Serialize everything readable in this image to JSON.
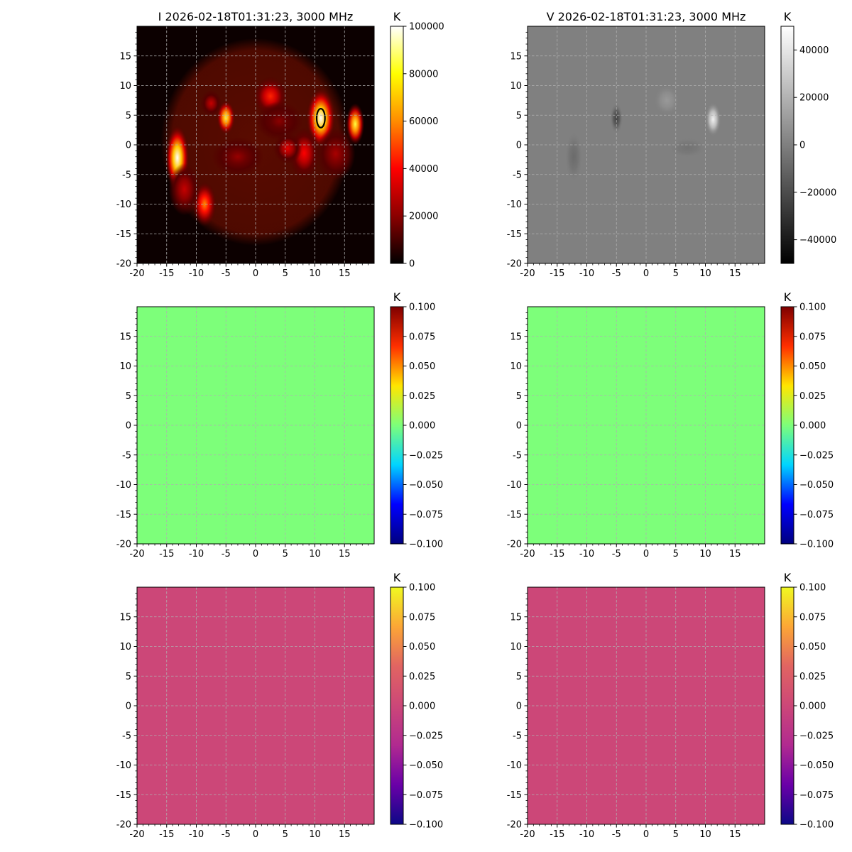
{
  "chart_data": [
    {
      "type": "heatmap",
      "title": "I 2026-02-18T01:31:23, 3000 MHz",
      "xlabel": "",
      "ylabel": "",
      "xlim": [
        -20,
        20
      ],
      "ylim": [
        -20,
        20
      ],
      "x_ticks": [
        "-20",
        "-15",
        "-10",
        "-5",
        "0",
        "5",
        "10",
        "15"
      ],
      "y_ticks": [
        "15",
        "10",
        "5",
        "0",
        "-5",
        "-10",
        "-15",
        "-20"
      ],
      "grid": true,
      "colormap": "hot",
      "colorbar": {
        "unit": "K",
        "range": [
          0,
          100000
        ],
        "ticks": [
          "100000",
          "80000",
          "60000",
          "40000",
          "20000",
          "0"
        ],
        "gradient": [
          "#000000",
          "#8b0000",
          "#ff0000",
          "#ff8c00",
          "#ffff00",
          "#ffffff"
        ]
      },
      "background_color": "#0c0000",
      "disk": {
        "center": [
          0,
          0.5
        ],
        "radius_x": 16,
        "radius_y": 17.5,
        "brightness_K": 12000,
        "color": "#5a0b00"
      },
      "sources": [
        {
          "x": 11,
          "y": 4.5,
          "sx": 1.1,
          "sy": 2.3,
          "peak_K": 100000
        },
        {
          "x": -13.2,
          "y": -2.2,
          "sx": 0.9,
          "sy": 2.5,
          "peak_K": 100000
        },
        {
          "x": -5,
          "y": 4.6,
          "sx": 0.7,
          "sy": 1.3,
          "peak_K": 85000
        },
        {
          "x": 16.8,
          "y": 3.5,
          "sx": 0.7,
          "sy": 1.6,
          "peak_K": 85000
        },
        {
          "x": -8.6,
          "y": -10,
          "sx": 0.9,
          "sy": 1.7,
          "peak_K": 60000
        },
        {
          "x": 2.5,
          "y": 8.2,
          "sx": 1.3,
          "sy": 1.5,
          "peak_K": 45000
        },
        {
          "x": 8.2,
          "y": -1.4,
          "sx": 1.2,
          "sy": 2.0,
          "peak_K": 40000
        },
        {
          "x": 5.4,
          "y": -0.6,
          "sx": 1.1,
          "sy": 1.2,
          "peak_K": 35000
        },
        {
          "x": -12,
          "y": -7.5,
          "sx": 1.2,
          "sy": 2.0,
          "peak_K": 30000
        },
        {
          "x": -7.5,
          "y": 7,
          "sx": 0.8,
          "sy": 1.0,
          "peak_K": 30000
        },
        {
          "x": 13.5,
          "y": -1.5,
          "sx": 1.5,
          "sy": 2.0,
          "peak_K": 25000
        },
        {
          "x": -3,
          "y": -2,
          "sx": 2.0,
          "sy": 1.5,
          "peak_K": 22000
        },
        {
          "x": 4,
          "y": 4,
          "sx": 1.8,
          "sy": 1.5,
          "peak_K": 20000
        }
      ],
      "contour": {
        "x": 11,
        "y": 4.5,
        "rx": 0.7,
        "ry": 1.6,
        "color": "#000000"
      }
    },
    {
      "type": "heatmap",
      "title": "V 2026-02-18T01:31:23, 3000 MHz",
      "xlabel": "",
      "ylabel": "",
      "xlim": [
        -20,
        20
      ],
      "ylim": [
        -20,
        20
      ],
      "x_ticks": [
        "-20",
        "-15",
        "-10",
        "-5",
        "0",
        "5",
        "10",
        "15"
      ],
      "y_ticks": [
        "15",
        "10",
        "5",
        "0",
        "-5",
        "-10",
        "-15",
        "-20"
      ],
      "grid": true,
      "colormap": "gray",
      "colorbar": {
        "unit": "K",
        "range": [
          -50000,
          50000
        ],
        "ticks": [
          "40000",
          "20000",
          "0",
          "−20000",
          "−40000"
        ],
        "gradient": [
          "#000000",
          "#ffffff"
        ]
      },
      "background_color": "#808080",
      "sources": [
        {
          "x": 11.3,
          "y": 4.3,
          "sx": 0.6,
          "sy": 1.3,
          "peak_K": 45000
        },
        {
          "x": 3.5,
          "y": 7.5,
          "sx": 1.0,
          "sy": 1.2,
          "peak_K": 10000
        },
        {
          "x": -5,
          "y": 4.5,
          "sx": 0.5,
          "sy": 1.2,
          "peak_K": -25000
        },
        {
          "x": -12.2,
          "y": -2,
          "sx": 0.7,
          "sy": 2.0,
          "peak_K": -8000
        },
        {
          "x": 7,
          "y": -0.5,
          "sx": 1.5,
          "sy": 0.8,
          "peak_K": -5000
        }
      ]
    },
    {
      "type": "heatmap",
      "title": "",
      "xlabel": "",
      "ylabel": "",
      "xlim": [
        -20,
        20
      ],
      "ylim": [
        -20,
        20
      ],
      "x_ticks": [
        "-20",
        "-15",
        "-10",
        "-5",
        "0",
        "5",
        "10",
        "15"
      ],
      "y_ticks": [
        "15",
        "10",
        "5",
        "0",
        "-5",
        "-10",
        "-15",
        "-20"
      ],
      "grid": true,
      "colormap": "jet",
      "colorbar": {
        "unit": "K",
        "range": [
          -0.1,
          0.1
        ],
        "ticks": [
          "0.100",
          "0.075",
          "0.050",
          "0.025",
          "0.000",
          "−0.025",
          "−0.050",
          "−0.075",
          "−0.100"
        ],
        "gradient": [
          "#00007f",
          "#0000ff",
          "#00d5ff",
          "#7dff7a",
          "#ffe600",
          "#ff2f00",
          "#7f0000"
        ]
      },
      "background_color": "#7dff7a",
      "value_K": 0
    },
    {
      "type": "heatmap",
      "title": "",
      "xlabel": "",
      "ylabel": "",
      "xlim": [
        -20,
        20
      ],
      "ylim": [
        -20,
        20
      ],
      "x_ticks": [
        "-20",
        "-15",
        "-10",
        "-5",
        "0",
        "5",
        "10",
        "15"
      ],
      "y_ticks": [
        "15",
        "10",
        "5",
        "0",
        "-5",
        "-10",
        "-15",
        "-20"
      ],
      "grid": true,
      "colormap": "jet",
      "colorbar": {
        "unit": "K",
        "range": [
          -0.1,
          0.1
        ],
        "ticks": [
          "0.100",
          "0.075",
          "0.050",
          "0.025",
          "0.000",
          "−0.025",
          "−0.050",
          "−0.075",
          "−0.100"
        ],
        "gradient": [
          "#00007f",
          "#0000ff",
          "#00d5ff",
          "#7dff7a",
          "#ffe600",
          "#ff2f00",
          "#7f0000"
        ]
      },
      "background_color": "#7dff7a",
      "value_K": 0
    },
    {
      "type": "heatmap",
      "title": "",
      "xlabel": "",
      "ylabel": "",
      "xlim": [
        -20,
        20
      ],
      "ylim": [
        -20,
        20
      ],
      "x_ticks": [
        "-20",
        "-15",
        "-10",
        "-5",
        "0",
        "5",
        "10",
        "15"
      ],
      "y_ticks": [
        "15",
        "10",
        "5",
        "0",
        "-5",
        "-10",
        "-15",
        "-20"
      ],
      "grid": true,
      "colormap": "plasma",
      "colorbar": {
        "unit": "K",
        "range": [
          -0.1,
          0.1
        ],
        "ticks": [
          "0.100",
          "0.075",
          "0.050",
          "0.025",
          "0.000",
          "−0.025",
          "−0.050",
          "−0.075",
          "−0.100"
        ],
        "gradient": [
          "#0d0887",
          "#6a00a8",
          "#b12a90",
          "#cc4778",
          "#e16462",
          "#fca636",
          "#f0f921"
        ]
      },
      "background_color": "#cc4778",
      "value_K": 0
    },
    {
      "type": "heatmap",
      "title": "",
      "xlabel": "",
      "ylabel": "",
      "xlim": [
        -20,
        20
      ],
      "ylim": [
        -20,
        20
      ],
      "x_ticks": [
        "-20",
        "-15",
        "-10",
        "-5",
        "0",
        "5",
        "10",
        "15"
      ],
      "y_ticks": [
        "15",
        "10",
        "5",
        "0",
        "-5",
        "-10",
        "-15",
        "-20"
      ],
      "grid": true,
      "colormap": "plasma",
      "colorbar": {
        "unit": "K",
        "range": [
          -0.1,
          0.1
        ],
        "ticks": [
          "0.100",
          "0.075",
          "0.050",
          "0.025",
          "0.000",
          "−0.025",
          "−0.050",
          "−0.075",
          "−0.100"
        ],
        "gradient": [
          "#0d0887",
          "#6a00a8",
          "#b12a90",
          "#cc4778",
          "#e16462",
          "#fca636",
          "#f0f921"
        ]
      },
      "background_color": "#cc4778",
      "value_K": 0
    }
  ]
}
